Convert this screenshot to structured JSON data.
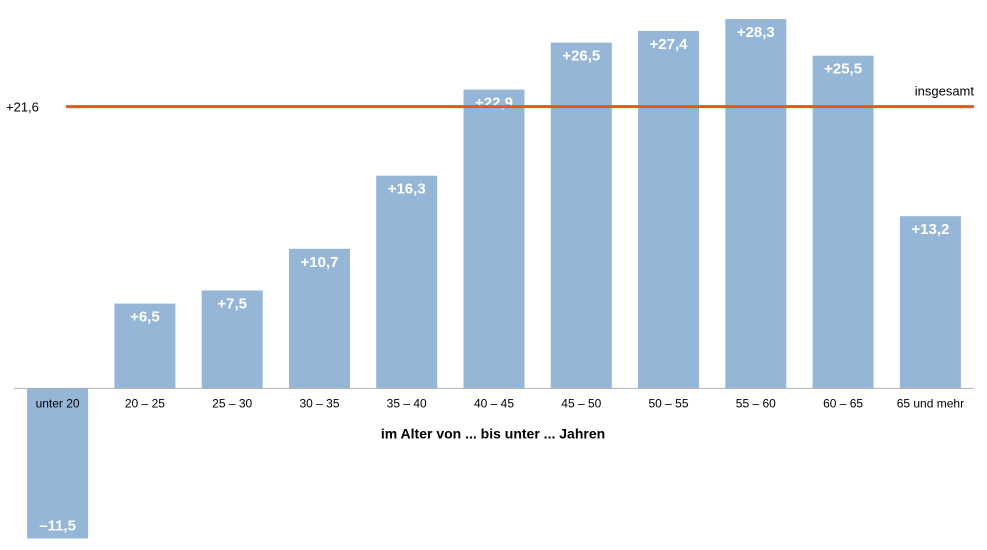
{
  "chart_data": {
    "type": "bar",
    "categories": [
      "unter 20",
      "20 – 25",
      "25 – 30",
      "30 – 35",
      "35 – 40",
      "40 – 45",
      "45 – 50",
      "50 – 55",
      "55 – 60",
      "60 – 65",
      "65 und mehr"
    ],
    "values": [
      -11.5,
      6.5,
      7.5,
      10.7,
      16.3,
      22.9,
      26.5,
      27.4,
      28.3,
      25.5,
      13.2
    ],
    "data_labels": [
      "–11,5",
      "+6,5",
      "+7,5",
      "+10,7",
      "+16,3",
      "+22,9",
      "+26,5",
      "+27,4",
      "+28,3",
      "+25,5",
      "+13,2"
    ],
    "xlabel": "im Alter von ... bis unter ... Jahren",
    "ylim": [
      -12,
      29
    ],
    "reference_line": {
      "value": 21.6,
      "value_label": "+21,6",
      "label": "insgesamt",
      "color": "#e05a1e"
    },
    "bar_color": "#95b6d6",
    "grid": false
  }
}
